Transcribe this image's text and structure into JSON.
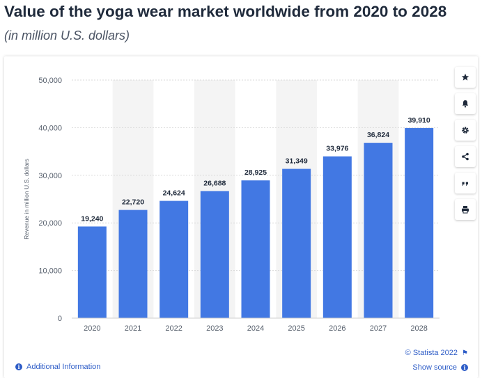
{
  "title": "Value of the yoga wear market worldwide from 2020 to 2028",
  "subtitle": "(in million U.S. dollars)",
  "toolbar": [
    {
      "name": "star-icon",
      "glyph": "★"
    },
    {
      "name": "bell-icon",
      "glyph": "bell"
    },
    {
      "name": "gear-icon",
      "glyph": "⚙"
    },
    {
      "name": "share-icon",
      "glyph": "share"
    },
    {
      "name": "quote-icon",
      "glyph": "❝"
    },
    {
      "name": "print-icon",
      "glyph": "print"
    }
  ],
  "footer": {
    "additional_info": "Additional Information",
    "copyright": "© Statista 2022",
    "show_source": "Show source"
  },
  "colors": {
    "bar": "#4278e3",
    "band": "#f4f4f4",
    "grid": "#d9d9d9",
    "link": "#2d5cc7"
  },
  "chart_data": {
    "type": "bar",
    "categories": [
      "2020",
      "2021",
      "2022",
      "2023",
      "2024",
      "2025",
      "2026",
      "2027",
      "2028"
    ],
    "values": [
      19240,
      22720,
      24624,
      26688,
      28925,
      31349,
      33976,
      36824,
      39910
    ],
    "value_labels": [
      "19,240",
      "22,720",
      "24,624",
      "26,688",
      "28,925",
      "31,349",
      "33,976",
      "36,824",
      "39,910"
    ],
    "yticks": [
      0,
      10000,
      20000,
      30000,
      40000,
      50000
    ],
    "ytick_labels": [
      "0",
      "10,000",
      "20,000",
      "30,000",
      "40,000",
      "50,000"
    ],
    "ylabel": "Revenue in million U.S. dollars",
    "xlabel": "",
    "ylim": [
      0,
      50000
    ],
    "grid": true
  }
}
